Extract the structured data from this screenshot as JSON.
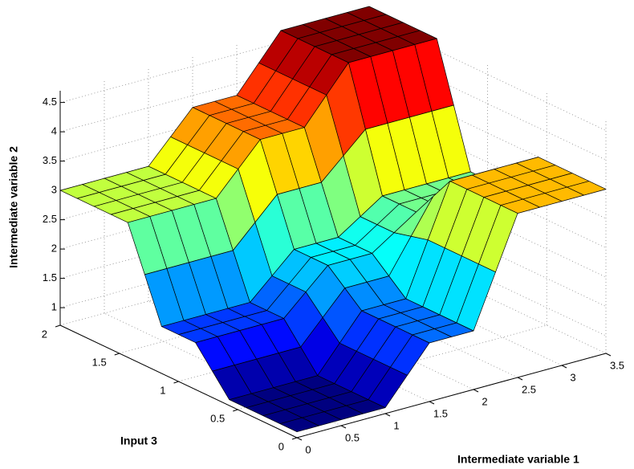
{
  "chart_data": {
    "type": "surface",
    "xlabel": "Intermediate variable 1",
    "ylabel": "Input 3",
    "zlabel": "Intermediate variable 2",
    "x": [
      0,
      0.25,
      0.5,
      0.75,
      1,
      1.25,
      1.5,
      1.75,
      2,
      2.25,
      2.5,
      2.75,
      3,
      3.25,
      3.5
    ],
    "y": [
      0,
      0.1429,
      0.2857,
      0.4286,
      0.5714,
      0.7143,
      0.8571,
      1,
      1.1429,
      1.2857,
      1.4286,
      1.5714,
      1.7143,
      1.8571,
      2
    ],
    "z": [
      [
        0.8,
        0.8,
        0.8,
        0.8,
        0.8,
        1.25,
        1.7,
        1.7,
        1.7,
        2.6,
        3.5,
        3.5,
        3.5,
        3.5,
        3.5
      ],
      [
        0.8,
        0.8,
        0.8,
        0.8,
        0.8,
        1.25,
        1.7,
        1.7,
        1.7,
        2.6,
        3.5,
        3.5,
        3.5,
        3.5,
        3.5
      ],
      [
        0.8,
        0.8,
        0.8,
        0.8,
        0.8,
        1.25,
        1.7,
        1.7,
        1.7,
        2.6,
        3.5,
        3.5,
        3.5,
        3.5,
        3.5
      ],
      [
        0.8,
        0.8,
        0.8,
        0.8,
        0.8,
        1.25,
        1.7,
        1.7,
        1.7,
        2.6,
        3.5,
        3.5,
        3.5,
        3.5,
        3.5
      ],
      [
        0.8,
        0.8,
        0.8,
        0.8,
        0.8,
        1.25,
        1.7,
        1.7,
        1.7,
        2.6,
        3.5,
        3.5,
        3.5,
        3.5,
        3.5
      ],
      [
        1.15,
        1.15,
        1.15,
        1.15,
        1.15,
        1.55,
        1.95,
        1.95,
        1.95,
        2.525,
        3.1,
        3.1,
        3.1,
        3.1,
        3.1
      ],
      [
        1.5,
        1.5,
        1.5,
        1.5,
        1.5,
        1.85,
        2.2,
        2.2,
        2.2,
        2.45,
        2.7,
        2.7,
        2.7,
        2.7,
        2.7
      ],
      [
        1.5,
        1.5,
        1.5,
        1.5,
        1.5,
        1.85,
        2.2,
        2.2,
        2.2,
        2.45,
        2.7,
        2.7,
        2.7,
        2.7,
        2.7
      ],
      [
        1.5,
        1.5,
        1.5,
        1.5,
        1.5,
        1.85,
        2.2,
        2.2,
        2.2,
        2.45,
        2.7,
        2.7,
        2.7,
        2.7,
        2.7
      ],
      [
        2.25,
        2.25,
        2.25,
        2.25,
        2.25,
        2.625,
        3,
        3,
        3,
        3.35,
        3.7,
        3.7,
        3.7,
        3.7,
        3.7
      ],
      [
        3,
        3,
        3,
        3,
        3,
        3.4,
        3.8,
        3.8,
        3.8,
        4.25,
        4.7,
        4.7,
        4.7,
        4.7,
        4.7
      ],
      [
        3,
        3,
        3,
        3,
        3,
        3.4,
        3.8,
        3.8,
        3.8,
        4.25,
        4.7,
        4.7,
        4.7,
        4.7,
        4.7
      ],
      [
        3,
        3,
        3,
        3,
        3,
        3.4,
        3.8,
        3.8,
        3.8,
        4.25,
        4.7,
        4.7,
        4.7,
        4.7,
        4.7
      ],
      [
        3,
        3,
        3,
        3,
        3,
        3.4,
        3.8,
        3.8,
        3.8,
        4.25,
        4.7,
        4.7,
        4.7,
        4.7,
        4.7
      ],
      [
        3,
        3,
        3,
        3,
        3,
        3.4,
        3.8,
        3.8,
        3.8,
        4.25,
        4.7,
        4.7,
        4.7,
        4.7,
        4.7
      ]
    ],
    "xlim": [
      0,
      3.5
    ],
    "ylim": [
      0,
      2
    ],
    "zlim": [
      0.7,
      4.7
    ],
    "xticks": [
      0,
      0.5,
      1,
      1.5,
      2,
      2.5,
      3,
      3.5
    ],
    "yticks": [
      0,
      0.5,
      1,
      1.5,
      2
    ],
    "zticks": [
      1,
      1.5,
      2,
      2.5,
      3,
      3.5,
      4,
      4.5
    ],
    "grid": true,
    "colormap": "jet",
    "edgecolor": "#000000"
  }
}
